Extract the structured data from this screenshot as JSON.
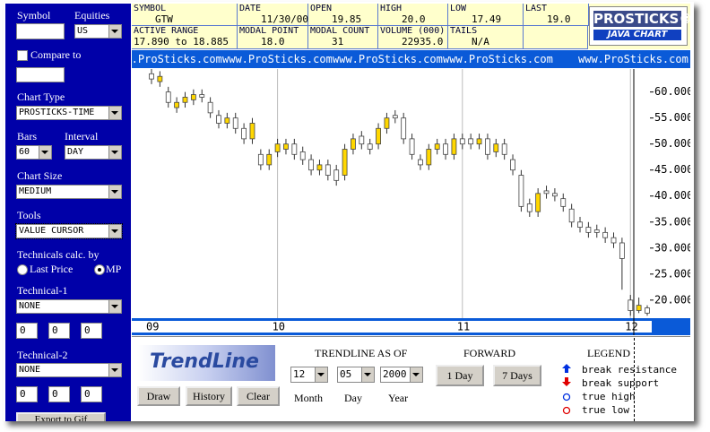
{
  "panel": {
    "symbol_label": "Symbol",
    "market_label": "Equities",
    "market": "US",
    "compare_label": "Compare to",
    "chart_type_label": "Chart Type",
    "chart_type": "PROSTICKS-TIME",
    "bars_label": "Bars",
    "bars": "60",
    "interval_label": "Interval",
    "interval": "DAY",
    "size_label": "Chart Size",
    "size": "MEDIUM",
    "tools_label": "Tools",
    "tools": "VALUE CURSOR",
    "calc_label": "Technicals calc. by",
    "calc_options": [
      "Last Price",
      "MP"
    ],
    "tech1_label": "Technical-1",
    "tech1": "NONE",
    "tech1_params": [
      "0",
      "0",
      "0"
    ],
    "tech2_label": "Technical-2",
    "tech2": "NONE",
    "tech2_params": [
      "0",
      "0",
      "0"
    ],
    "export": "Export to Gif"
  },
  "header": {
    "fields": [
      {
        "label": "SYMBOL",
        "value": "GTW"
      },
      {
        "label": "DATE",
        "value": "11/30/00"
      },
      {
        "label": "OPEN",
        "value": "19.85"
      },
      {
        "label": "HIGH",
        "value": "20.0"
      },
      {
        "label": "LOW",
        "value": "17.49"
      },
      {
        "label": "LAST",
        "value": "19.0"
      },
      {
        "label": "ACTIVE RANGE",
        "value": "17.890 to 18.885"
      },
      {
        "label": "MODAL POINT",
        "value": "18.0"
      },
      {
        "label": "MODAL COUNT",
        "value": "31"
      },
      {
        "label": "VOLUME (000)",
        "value": "22935.0"
      },
      {
        "label": "TAILS",
        "value": "N/A"
      }
    ]
  },
  "logo": {
    "title": "PROSTICKS®",
    "subtitle": "JAVA CHART"
  },
  "banner": "www.ProSticks.com",
  "chart_data": {
    "type": "candlestick",
    "categories": [
      "09",
      null,
      null,
      null,
      null,
      null,
      null,
      null,
      null,
      null,
      null,
      null,
      null,
      null,
      null,
      "10",
      null,
      null,
      null,
      null,
      null,
      null,
      null,
      null,
      null,
      null,
      null,
      null,
      null,
      null,
      null,
      null,
      null,
      null,
      null,
      null,
      null,
      "11",
      null,
      null,
      null,
      null,
      null,
      null,
      null,
      null,
      null,
      null,
      null,
      null,
      null,
      null,
      null,
      null,
      null,
      null,
      null,
      "12",
      null,
      null
    ],
    "open": [
      63.5,
      62,
      60,
      57,
      58,
      58.5,
      59.5,
      58,
      55.5,
      54,
      55,
      53,
      51,
      48,
      46,
      48.5,
      49,
      50,
      48.5,
      47,
      45,
      46,
      45,
      44,
      49,
      51.5,
      50,
      50,
      53,
      55.5,
      55,
      51,
      47,
      46,
      49,
      50,
      48,
      51,
      51,
      50,
      51,
      48.5,
      50,
      47,
      44,
      38.5,
      37,
      41,
      40.5,
      39.5,
      37.5,
      35,
      34,
      33.5,
      33,
      32,
      31,
      20,
      18,
      18.5
    ],
    "high": [
      64.5,
      64,
      61,
      59,
      60,
      60.5,
      60.5,
      59,
      56.5,
      56,
      56,
      54,
      55,
      49,
      49,
      51,
      51,
      51,
      49.5,
      48,
      47,
      47,
      46,
      50,
      52,
      52.5,
      51,
      54,
      56,
      56.5,
      56,
      52,
      48,
      50,
      51,
      51,
      52,
      52,
      52,
      52,
      52,
      51,
      51,
      48,
      45,
      39.5,
      41.5,
      42,
      41.5,
      40.5,
      38.5,
      36,
      35,
      34.5,
      34,
      33,
      32,
      21,
      20.5,
      19
    ],
    "low": [
      61.5,
      61,
      57,
      56,
      57,
      57.5,
      58,
      55,
      53,
      53,
      52,
      50,
      50,
      45,
      45,
      47.5,
      48,
      47,
      46,
      44,
      44,
      43,
      42,
      43,
      48,
      49,
      48,
      49,
      52,
      54,
      50,
      47,
      45,
      45,
      48,
      47,
      47,
      49,
      49,
      49,
      47,
      47.5,
      47,
      44,
      37,
      36,
      36,
      39.5,
      39,
      37,
      34,
      33,
      32,
      32,
      31,
      30,
      22,
      17,
      17.5,
      17
    ],
    "close": [
      62.5,
      63,
      58,
      58,
      59,
      59.5,
      59,
      56,
      54,
      55,
      53,
      51,
      54,
      46,
      48,
      50,
      50,
      48,
      47,
      45,
      46,
      44,
      43,
      49,
      51,
      50,
      49,
      53,
      55,
      55,
      51,
      48,
      46,
      49,
      50,
      48,
      51,
      50,
      50,
      51,
      48,
      50,
      48,
      45,
      38,
      37,
      40.5,
      40.5,
      40,
      38,
      35,
      34,
      33,
      33,
      32,
      31,
      28,
      18,
      19,
      17.5
    ],
    "up_color": "#ffd700",
    "down_color": "#ffffff",
    "ylim": [
      16.7,
      63.9
    ],
    "yticks": [
      {
        "value": 20,
        "label": "20.000"
      },
      {
        "value": 25,
        "label": "25.000"
      },
      {
        "value": 30,
        "label": "30.000"
      },
      {
        "value": 35,
        "label": "35.000"
      },
      {
        "value": 40,
        "label": "40.000"
      },
      {
        "value": 45,
        "label": "45.000"
      },
      {
        "value": 50,
        "label": "50.000"
      },
      {
        "value": 55,
        "label": "55.000"
      },
      {
        "value": 60,
        "label": "60.000"
      }
    ]
  },
  "trendline": {
    "logo": "TrendLine",
    "buttons": [
      "Draw",
      "History",
      "Clear"
    ],
    "as_of_label": "TRENDLINE AS OF",
    "month": "12",
    "day": "05",
    "year": "2000",
    "month_label": "Month",
    "day_label": "Day",
    "year_label": "Year",
    "forward_label": "FORWARD",
    "forward_buttons": [
      "1 Day",
      "7 Days"
    ],
    "legend_label": "LEGEND",
    "legend": [
      "break resistance",
      "break support",
      "true high",
      "true low"
    ]
  }
}
